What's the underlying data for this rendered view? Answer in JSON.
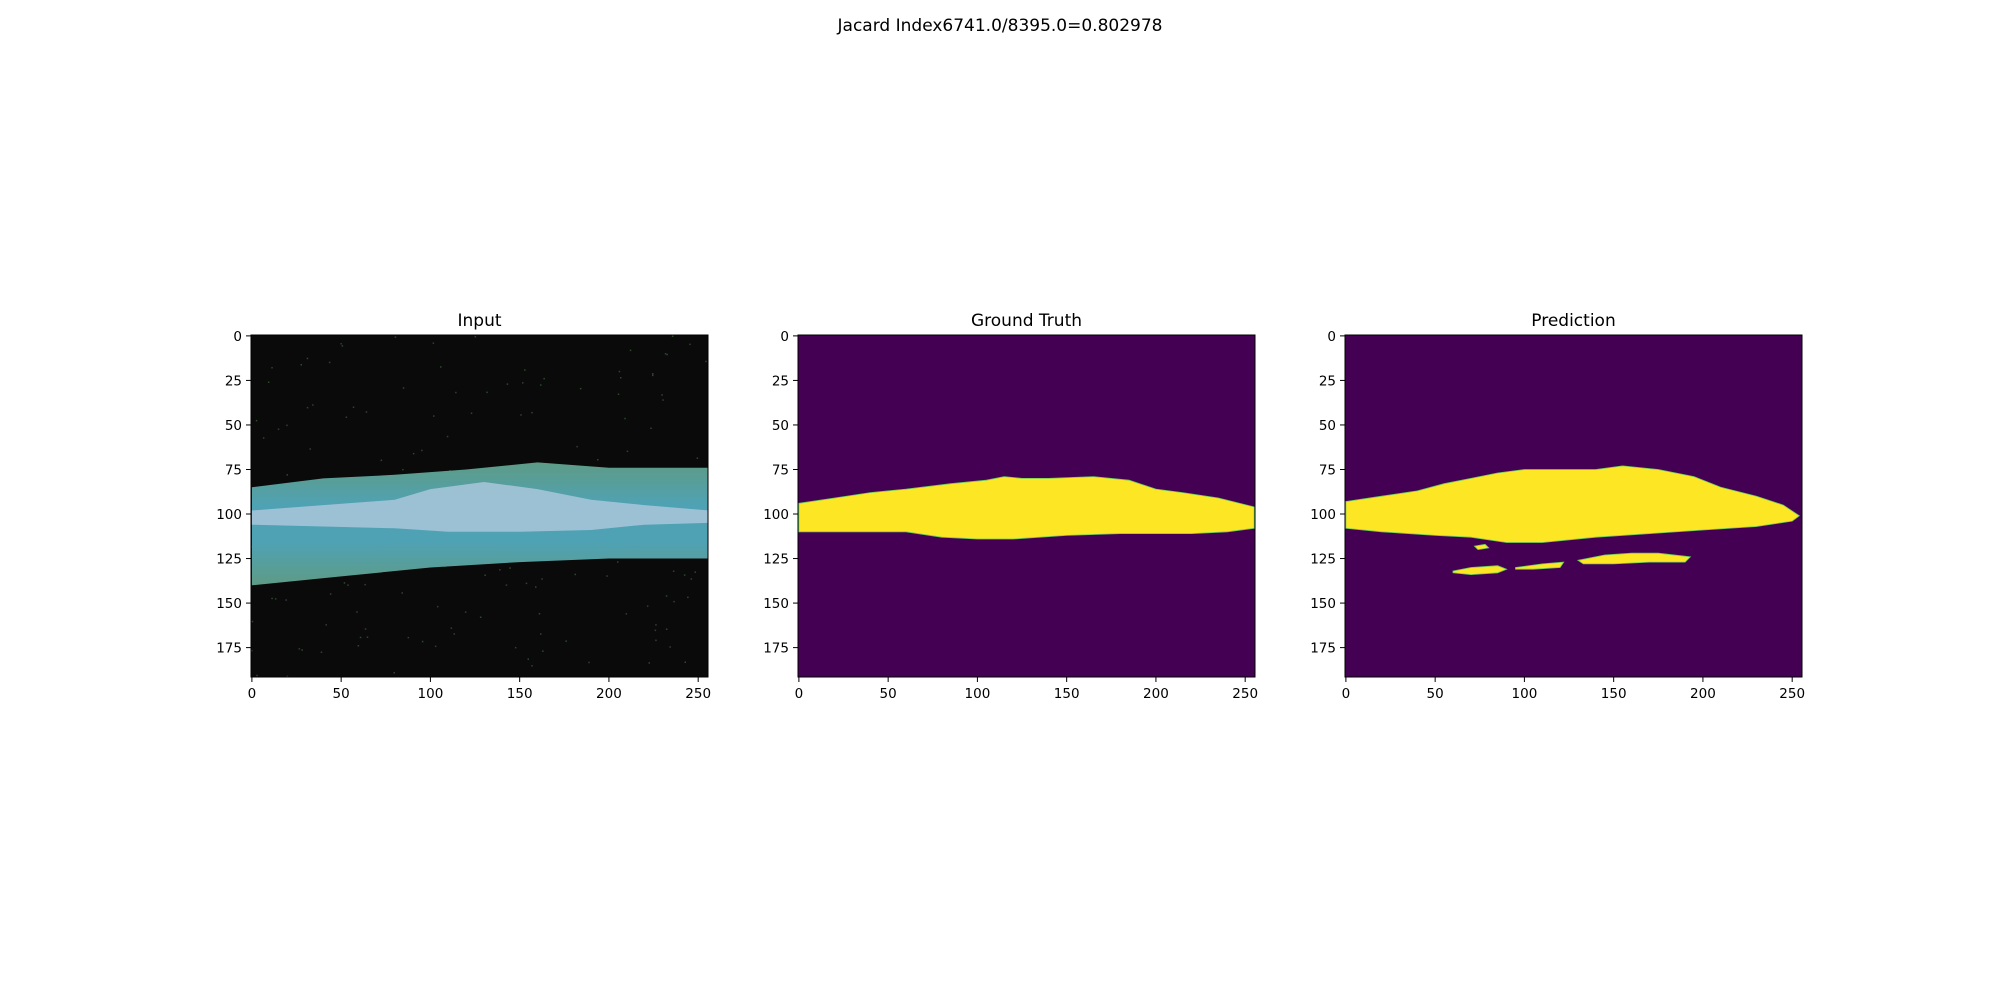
{
  "figure": {
    "suptitle": "Jacard Index6741.0/8395.0=0.802978"
  },
  "colors": {
    "background_mask": "#440154",
    "foreground_mask": "#fde725",
    "input_background": "#0a0a0a",
    "input_leaf_outer": "#5e9b85",
    "input_leaf_mid": "#4fa2b4",
    "input_lesion": "#a9c7da",
    "edge_green": "#6ccd5a"
  },
  "chart_data": [
    {
      "type": "image",
      "title": "Input",
      "image_shape": [
        192,
        256
      ],
      "xticks": [
        0,
        50,
        100,
        150,
        200,
        250
      ],
      "yticks": [
        0,
        25,
        50,
        75,
        100,
        125,
        150,
        175
      ],
      "content": "leaf image on dark background",
      "leaf_top_edge": [
        [
          0,
          85
        ],
        [
          40,
          80
        ],
        [
          80,
          78
        ],
        [
          120,
          75
        ],
        [
          160,
          71
        ],
        [
          200,
          74
        ],
        [
          256,
          74
        ]
      ],
      "leaf_bottom_edge": [
        [
          256,
          125
        ],
        [
          200,
          125
        ],
        [
          150,
          127
        ],
        [
          100,
          130
        ],
        [
          50,
          135
        ],
        [
          0,
          140
        ]
      ],
      "lesion_top": [
        [
          0,
          98
        ],
        [
          40,
          95
        ],
        [
          80,
          92
        ],
        [
          100,
          86
        ],
        [
          130,
          82
        ],
        [
          160,
          86
        ],
        [
          190,
          92
        ],
        [
          220,
          95
        ],
        [
          256,
          98
        ]
      ],
      "lesion_bottom": [
        [
          256,
          105
        ],
        [
          220,
          106
        ],
        [
          190,
          109
        ],
        [
          150,
          110
        ],
        [
          110,
          110
        ],
        [
          80,
          108
        ],
        [
          40,
          107
        ],
        [
          0,
          106
        ]
      ]
    },
    {
      "type": "mask",
      "title": "Ground Truth",
      "image_shape": [
        192,
        256
      ],
      "xticks": [
        0,
        50,
        100,
        150,
        200,
        250
      ],
      "yticks": [
        0,
        25,
        50,
        75,
        100,
        125,
        150,
        175
      ],
      "regions": [
        {
          "label": 1,
          "outline": [
            [
              0,
              94
            ],
            [
              20,
              91
            ],
            [
              40,
              88
            ],
            [
              60,
              86
            ],
            [
              85,
              83
            ],
            [
              105,
              81
            ],
            [
              115,
              79
            ],
            [
              125,
              80
            ],
            [
              140,
              80
            ],
            [
              165,
              79
            ],
            [
              185,
              81
            ],
            [
              200,
              86
            ],
            [
              215,
              88
            ],
            [
              235,
              91
            ],
            [
              255,
              96
            ],
            [
              255,
              108
            ],
            [
              240,
              110
            ],
            [
              220,
              111
            ],
            [
              200,
              111
            ],
            [
              180,
              111
            ],
            [
              150,
              112
            ],
            [
              120,
              114
            ],
            [
              100,
              114
            ],
            [
              80,
              113
            ],
            [
              60,
              110
            ],
            [
              40,
              110
            ],
            [
              20,
              110
            ],
            [
              0,
              110
            ]
          ]
        }
      ]
    },
    {
      "type": "mask",
      "title": "Prediction",
      "image_shape": [
        192,
        256
      ],
      "xticks": [
        0,
        50,
        100,
        150,
        200,
        250
      ],
      "yticks": [
        0,
        25,
        50,
        75,
        100,
        125,
        150,
        175
      ],
      "regions": [
        {
          "label": 1,
          "outline": [
            [
              0,
              93
            ],
            [
              20,
              90
            ],
            [
              40,
              87
            ],
            [
              55,
              83
            ],
            [
              70,
              80
            ],
            [
              85,
              77
            ],
            [
              100,
              75
            ],
            [
              140,
              75
            ],
            [
              155,
              73
            ],
            [
              175,
              75
            ],
            [
              195,
              79
            ],
            [
              210,
              85
            ],
            [
              230,
              90
            ],
            [
              245,
              95
            ],
            [
              254,
              101
            ],
            [
              250,
              104
            ],
            [
              230,
              107
            ],
            [
              200,
              109
            ],
            [
              170,
              111
            ],
            [
              140,
              113
            ],
            [
              110,
              116
            ],
            [
              90,
              116
            ],
            [
              70,
              113
            ],
            [
              50,
              112
            ],
            [
              20,
              110
            ],
            [
              0,
              108
            ]
          ]
        },
        {
          "label": 1,
          "outline": [
            [
              60,
              132
            ],
            [
              70,
              130
            ],
            [
              85,
              129
            ],
            [
              90,
              131
            ],
            [
              85,
              133
            ],
            [
              70,
              134
            ],
            [
              60,
              133
            ]
          ]
        },
        {
          "label": 1,
          "outline": [
            [
              95,
              130
            ],
            [
              110,
              128
            ],
            [
              122,
              127
            ],
            [
              120,
              130
            ],
            [
              105,
              131
            ],
            [
              95,
              131
            ]
          ]
        },
        {
          "label": 1,
          "outline": [
            [
              130,
              126
            ],
            [
              145,
              123
            ],
            [
              160,
              122
            ],
            [
              175,
              122
            ],
            [
              193,
              124
            ],
            [
              190,
              127
            ],
            [
              170,
              127
            ],
            [
              150,
              128
            ],
            [
              133,
              128
            ]
          ]
        },
        {
          "label": 1,
          "outline": [
            [
              72,
              118
            ],
            [
              78,
              117
            ],
            [
              80,
              119
            ],
            [
              74,
              120
            ]
          ]
        }
      ]
    }
  ]
}
